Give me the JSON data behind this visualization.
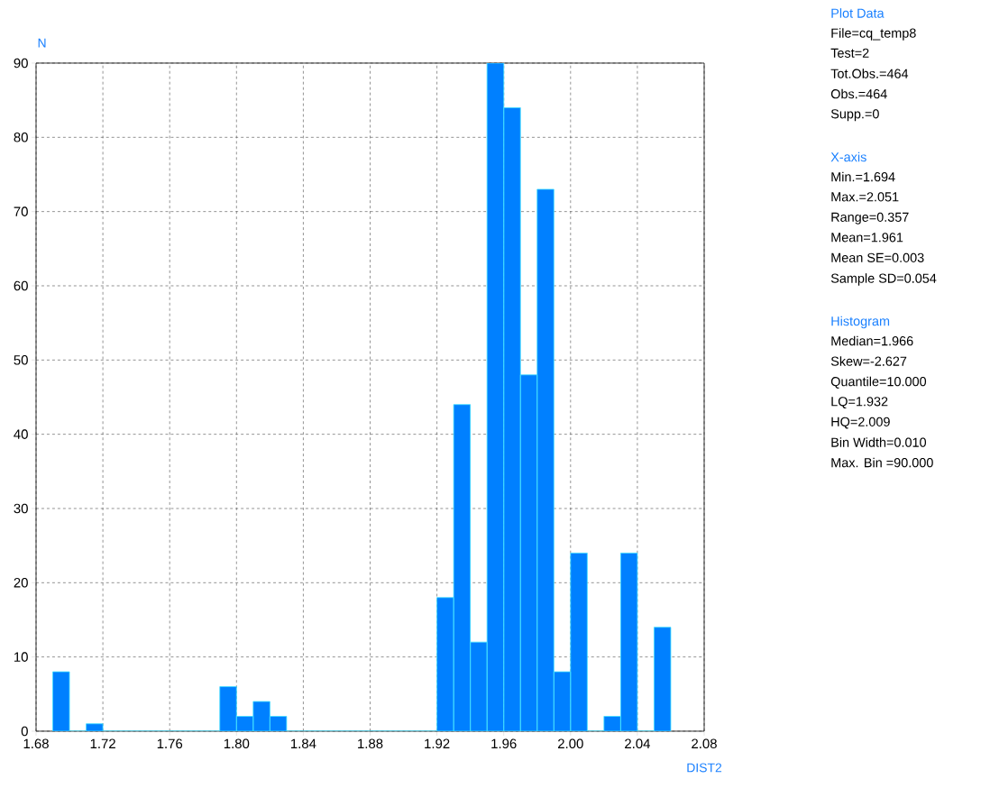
{
  "chart_data": [
    {
      "type": "histogram",
      "xlabel": "DIST2",
      "ylabel": "N",
      "color": "#0080ff",
      "bins": [
        1.69,
        1.7,
        1.71,
        1.72,
        1.73,
        1.74,
        1.75,
        1.76,
        1.77,
        1.78,
        1.79,
        1.8,
        1.81,
        1.82,
        1.83,
        1.84,
        1.85,
        1.86,
        1.87,
        1.88,
        1.89,
        1.9,
        1.91,
        1.92,
        1.93,
        1.94,
        1.95,
        1.96,
        1.97,
        1.98,
        1.99,
        2.0,
        2.01,
        2.02,
        2.03,
        2.04,
        2.05,
        2.06
      ],
      "values": [
        8,
        0,
        1,
        0,
        0,
        0,
        0,
        0,
        0,
        0,
        6,
        2,
        4,
        2,
        0,
        0,
        0,
        0,
        0,
        0,
        0,
        0,
        0,
        18,
        44,
        12,
        90,
        84,
        48,
        73,
        8,
        24,
        0,
        2,
        24,
        0,
        14
      ],
      "xlim": [
        1.68,
        2.08
      ],
      "ylim": [
        0,
        90
      ],
      "xticks": [
        1.68,
        1.72,
        1.76,
        {
          "value": 1.8,
          "label": "1.80"
        },
        1.84,
        1.88,
        1.92,
        1.96,
        {
          "value": 2.0,
          "label": "2.00"
        },
        2.04,
        2.08
      ],
      "yticks": [
        0,
        10,
        20,
        30,
        40,
        50,
        60,
        70,
        80,
        90
      ],
      "grid": true
    },
    {
      "type": "other",
      "title": "Plot Data",
      "annotations": [
        "File=cq_temp8",
        "Test=2",
        "Tot.Obs.=464",
        "Obs.=464",
        "Supp.=0"
      ]
    },
    {
      "type": "other",
      "title": "X-axis",
      "annotations": [
        "Min.=1.694",
        "Max.=2.051",
        "Range=0.357",
        "Mean=1.961",
        "Mean SE=0.003",
        "Sample SD=0.054"
      ]
    },
    {
      "type": "other",
      "title": "Histogram",
      "annotations": [
        "Median=1.966",
        "Skew=-2.627",
        "Quantile=10.000",
        "LQ=1.932",
        "HQ=2.009",
        "Bin Width=0.010",
        "Max. Bin =90.000"
      ]
    }
  ]
}
